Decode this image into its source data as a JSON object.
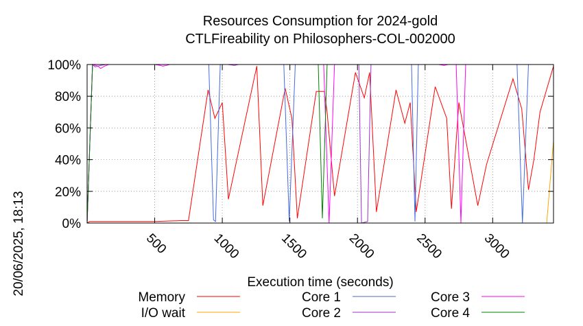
{
  "chart_data": {
    "type": "line",
    "title": "Resources Consumption for 2024-gold",
    "subtitle": "CTLFireability on Philosophers-COL-002000",
    "xlabel": "Execution time (seconds)",
    "ylabel": "",
    "side_label": "20/06/2025, 18:13",
    "xlim": [
      0,
      3450
    ],
    "ylim": [
      0,
      100
    ],
    "x_ticks": [
      500,
      1000,
      1500,
      2000,
      2500,
      3000
    ],
    "y_ticks": [
      0,
      20,
      40,
      60,
      80,
      100
    ],
    "y_tick_labels": [
      "0%",
      "20%",
      "40%",
      "60%",
      "80%",
      "100%"
    ],
    "grid": true,
    "legend_position": "bottom",
    "series": [
      {
        "name": "Memory",
        "color": "#ff0000",
        "x": [
          0,
          20,
          500,
          700,
          750,
          895,
          945,
          1000,
          1045,
          1255,
          1300,
          1465,
          1515,
          1555,
          1695,
          1755,
          1775,
          1830,
          1985,
          2050,
          2090,
          2140,
          2285,
          2350,
          2390,
          2435,
          2575,
          2660,
          2695,
          2750,
          2890,
          2955,
          3150,
          3215,
          3265,
          3305,
          3350,
          3450
        ],
        "y": [
          0,
          1,
          1,
          1.5,
          1.5,
          84,
          66,
          76,
          15,
          99,
          11,
          85,
          66,
          3,
          83,
          83,
          70,
          17,
          95,
          79,
          95,
          7,
          84,
          63,
          76,
          7,
          86,
          66,
          9,
          76,
          11,
          37,
          91,
          72,
          21,
          40,
          70,
          99
        ]
      },
      {
        "name": "I/O wait",
        "color": "#ffa500",
        "x": [
          0,
          3400,
          3450
        ],
        "y": [
          0,
          0,
          52
        ]
      },
      {
        "name": "Core 1",
        "color": "#4169e1",
        "x": [
          0,
          40,
          900,
          935,
          950,
          985,
          1020,
          1455,
          1495,
          1540,
          2400,
          2425,
          2450,
          3180,
          3220,
          3265,
          3450
        ],
        "y": [
          0,
          100,
          100,
          2,
          1,
          100,
          100,
          100,
          1,
          100,
          100,
          1,
          100,
          100,
          0,
          100,
          100
        ]
      },
      {
        "name": "Core 2",
        "color": "#9932cc",
        "x": [
          0,
          40,
          60,
          100,
          140,
          180,
          1040,
          1090,
          1120,
          2010,
          2030,
          2075,
          2100,
          2135,
          2160,
          3450
        ],
        "y": [
          0,
          100,
          98.5,
          99.5,
          100,
          100,
          100,
          99.5,
          100,
          100,
          0,
          1,
          100,
          100,
          100,
          100
        ]
      },
      {
        "name": "Core 3",
        "color": "#ff00ff",
        "x": [
          0,
          40,
          80,
          100,
          130,
          160,
          500,
          540,
          560,
          590,
          610,
          1750,
          1790,
          1830,
          2600,
          2640,
          2670,
          2730,
          2765,
          2800,
          3450
        ],
        "y": [
          0,
          100,
          99,
          97.5,
          99,
          100,
          100,
          99.5,
          99,
          99.5,
          100,
          100,
          0,
          100,
          100,
          99.5,
          100,
          100,
          0,
          100,
          100
        ]
      },
      {
        "name": "Core 4",
        "color": "#008000",
        "x": [
          0,
          40,
          1710,
          1740,
          1775,
          3450
        ],
        "y": [
          0,
          100,
          100,
          3,
          100,
          100
        ]
      }
    ]
  }
}
